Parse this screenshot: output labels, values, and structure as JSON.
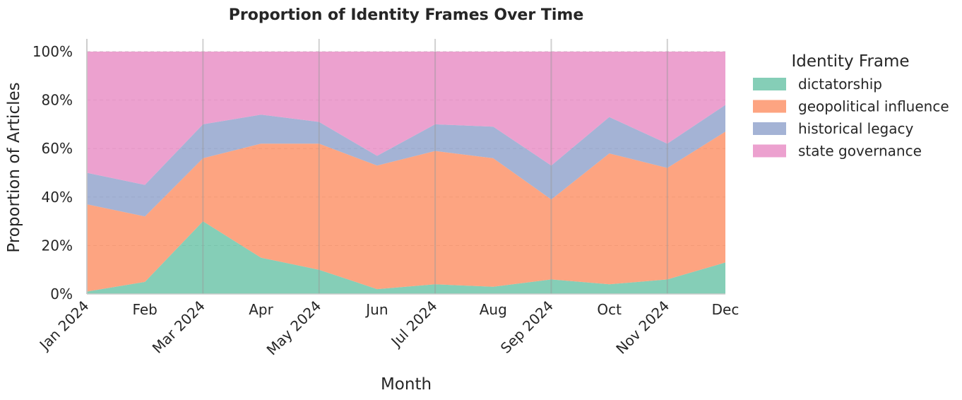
{
  "chart_data": {
    "type": "area",
    "title": "Proportion of Identity Frames Over Time",
    "xlabel": "Month",
    "ylabel": "Proportion of Articles",
    "x": [
      "2024-01",
      "2024-02",
      "2024-03",
      "2024-04",
      "2024-05",
      "2024-06",
      "2024-07",
      "2024-08",
      "2024-09",
      "2024-10",
      "2024-11",
      "2024-12"
    ],
    "x_tick_labels": {
      "major": [
        "Jan 2024",
        "Mar 2024",
        "May 2024",
        "Jul 2024",
        "Sep 2024",
        "Nov 2024"
      ],
      "minor": [
        "Feb",
        "Apr",
        "Jun",
        "Aug",
        "Oct",
        "Dec"
      ]
    },
    "y_tick_labels": [
      "0%",
      "20%",
      "40%",
      "60%",
      "80%",
      "100%"
    ],
    "ylim": [
      0,
      1
    ],
    "stacked": true,
    "grid": true,
    "legend": {
      "title": "Identity Frame",
      "placement": "outside-right"
    },
    "series": [
      {
        "name": "dictatorship",
        "color": "#66c2a5",
        "values": [
          0.01,
          0.05,
          0.3,
          0.15,
          0.1,
          0.02,
          0.04,
          0.03,
          0.06,
          0.04,
          0.06,
          0.13
        ]
      },
      {
        "name": "geopolitical influence",
        "color": "#fc8d62",
        "values": [
          0.36,
          0.27,
          0.26,
          0.47,
          0.52,
          0.51,
          0.55,
          0.53,
          0.33,
          0.54,
          0.46,
          0.54
        ]
      },
      {
        "name": "historical legacy",
        "color": "#8da0cb",
        "values": [
          0.13,
          0.13,
          0.14,
          0.12,
          0.09,
          0.04,
          0.11,
          0.13,
          0.14,
          0.15,
          0.1,
          0.11
        ]
      },
      {
        "name": "state governance",
        "color": "#e78ac3",
        "values": [
          0.5,
          0.55,
          0.3,
          0.26,
          0.29,
          0.43,
          0.3,
          0.31,
          0.47,
          0.27,
          0.38,
          0.22
        ]
      }
    ]
  }
}
